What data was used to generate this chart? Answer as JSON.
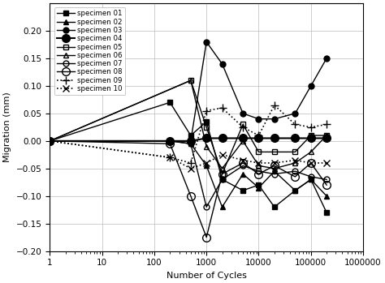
{
  "xlabel": "Number of Cycles",
  "ylabel": "Migration (mm)",
  "ylim": [
    -0.2,
    0.25
  ],
  "yticks": [
    -0.2,
    -0.15,
    -0.1,
    -0.05,
    0,
    0.05,
    0.1,
    0.15,
    0.2
  ],
  "specimens": [
    {
      "label": "specimen 01",
      "marker": "s",
      "linestyle": "-",
      "color": "#000000",
      "markerfacecolor": "#000000",
      "markersize": 5,
      "linewidth": 1.0,
      "x": [
        1,
        200,
        500,
        1000,
        2000,
        5000,
        10000,
        20000,
        50000,
        100000,
        200000
      ],
      "y": [
        0,
        0.07,
        0.01,
        0.035,
        -0.07,
        -0.09,
        -0.08,
        -0.12,
        -0.09,
        -0.07,
        -0.13
      ]
    },
    {
      "label": "specimen 02",
      "marker": "^",
      "linestyle": "-",
      "color": "#000000",
      "markerfacecolor": "#000000",
      "markersize": 5,
      "linewidth": 1.0,
      "x": [
        1,
        200,
        500,
        1000,
        2000,
        5000,
        10000,
        20000,
        50000,
        100000,
        200000
      ],
      "y": [
        0,
        0.0,
        -0.005,
        -0.045,
        -0.12,
        -0.06,
        -0.085,
        -0.055,
        -0.09,
        -0.07,
        -0.1
      ]
    },
    {
      "label": "specimen 03",
      "marker": "o",
      "linestyle": "-",
      "color": "#000000",
      "markerfacecolor": "#000000",
      "markersize": 5,
      "linewidth": 1.0,
      "x": [
        1,
        500,
        1000,
        2000,
        5000,
        10000,
        20000,
        50000,
        100000,
        200000
      ],
      "y": [
        0,
        0.0,
        0.18,
        0.14,
        0.05,
        0.04,
        0.04,
        0.05,
        0.1,
        0.15
      ]
    },
    {
      "label": "specimen 04",
      "marker": "o",
      "linestyle": "-",
      "color": "#000000",
      "markerfacecolor": "#000000",
      "markersize": 7,
      "linewidth": 1.5,
      "x": [
        1,
        200,
        500,
        1000,
        2000,
        5000,
        10000,
        20000,
        50000,
        100000,
        200000
      ],
      "y": [
        0,
        0.0,
        0.0,
        0.005,
        0.005,
        0.005,
        0.005,
        0.005,
        0.005,
        0.005,
        0.005
      ]
    },
    {
      "label": "specimen 05",
      "marker": "s",
      "linestyle": "-",
      "color": "#000000",
      "markerfacecolor": "none",
      "markersize": 5,
      "linewidth": 1.0,
      "x": [
        1,
        500,
        1000,
        2000,
        5000,
        10000,
        20000,
        50000,
        100000,
        200000
      ],
      "y": [
        0,
        0.11,
        0.025,
        -0.06,
        0.03,
        -0.02,
        -0.02,
        -0.02,
        0.01,
        0.01
      ]
    },
    {
      "label": "specimen 06",
      "marker": "^",
      "linestyle": "-",
      "color": "#000000",
      "markerfacecolor": "none",
      "markersize": 5,
      "linewidth": 1.0,
      "x": [
        1,
        500,
        1000,
        2000,
        5000,
        10000,
        20000,
        50000,
        100000,
        200000
      ],
      "y": [
        0,
        0.11,
        -0.01,
        -0.05,
        0.0,
        -0.045,
        -0.05,
        -0.04,
        -0.02,
        0.01
      ]
    },
    {
      "label": "specimen 07",
      "marker": "o",
      "linestyle": "-",
      "color": "#000000",
      "markerfacecolor": "none",
      "markersize": 5,
      "linewidth": 1.0,
      "x": [
        1,
        200,
        500,
        1000,
        2000,
        5000,
        10000,
        20000,
        50000,
        100000,
        200000
      ],
      "y": [
        0,
        0.0,
        -0.005,
        -0.12,
        -0.07,
        -0.045,
        -0.055,
        -0.06,
        -0.055,
        -0.065,
        -0.07
      ]
    },
    {
      "label": "specimen 08",
      "marker": "o",
      "linestyle": "-",
      "color": "#000000",
      "markerfacecolor": "none",
      "markersize": 7,
      "linewidth": 1.0,
      "x": [
        1,
        200,
        500,
        1000,
        2000,
        5000,
        10000,
        20000,
        50000,
        100000,
        200000
      ],
      "y": [
        0,
        -0.005,
        -0.1,
        -0.175,
        -0.06,
        -0.04,
        -0.06,
        -0.045,
        -0.065,
        -0.04,
        -0.08
      ]
    },
    {
      "label": "specimen 09",
      "marker": "+",
      "linestyle": ":",
      "color": "#000000",
      "markerfacecolor": "#000000",
      "markersize": 7,
      "linewidth": 1.2,
      "x": [
        1,
        200,
        500,
        1000,
        2000,
        5000,
        10000,
        20000,
        50000,
        100000,
        200000
      ],
      "y": [
        0,
        -0.03,
        -0.04,
        0.055,
        0.06,
        0.025,
        0.01,
        0.065,
        0.03,
        0.025,
        0.03
      ]
    },
    {
      "label": "specimen 10",
      "marker": "x",
      "linestyle": ":",
      "color": "#000000",
      "markerfacecolor": "#000000",
      "markersize": 6,
      "linewidth": 1.2,
      "x": [
        1,
        200,
        500,
        1000,
        2000,
        5000,
        10000,
        20000,
        50000,
        100000,
        200000
      ],
      "y": [
        0,
        -0.03,
        -0.05,
        -0.04,
        -0.025,
        -0.035,
        -0.04,
        -0.04,
        -0.035,
        -0.04,
        -0.04
      ]
    }
  ]
}
